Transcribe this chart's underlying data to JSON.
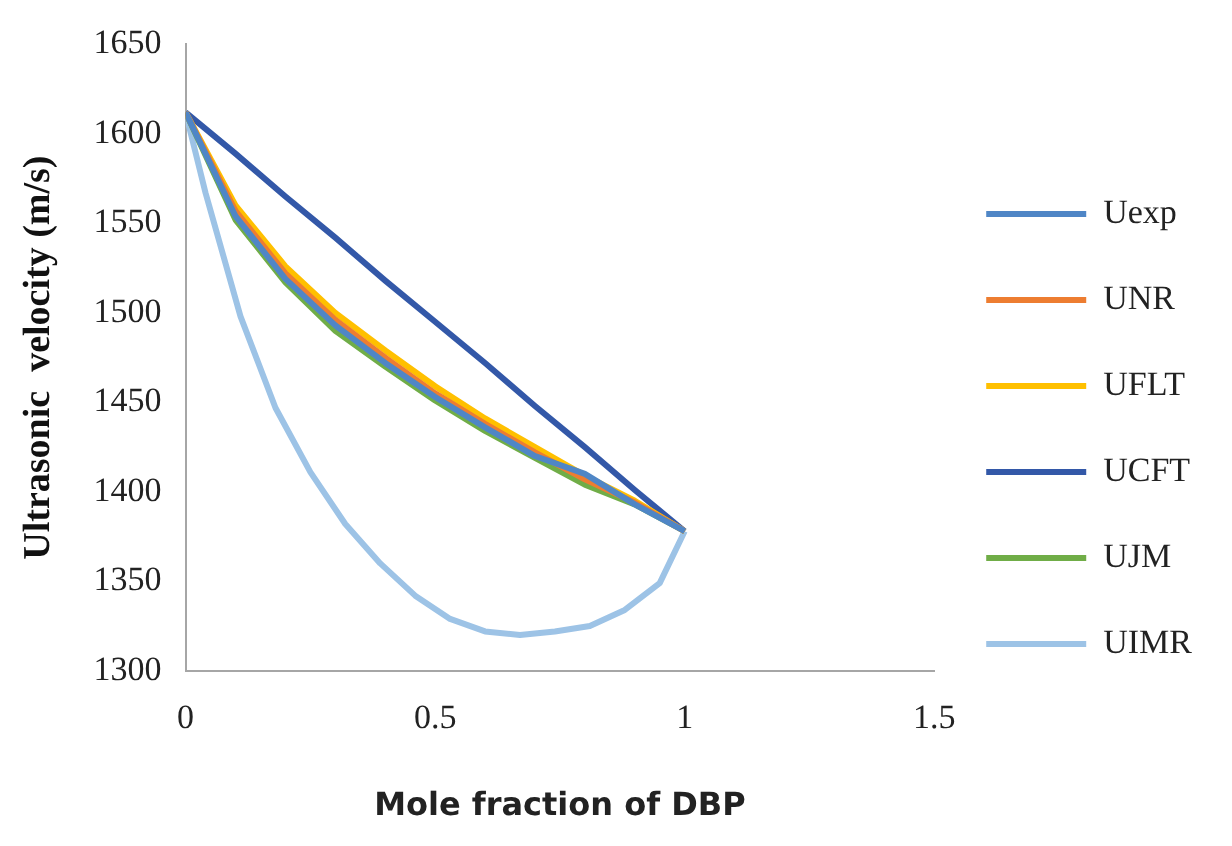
{
  "chart_data": {
    "type": "line",
    "xlabel": "Mole fraction of DBP",
    "ylabel": "Ultrasonic  velocity (m/s)",
    "xlim": [
      0,
      1.5
    ],
    "xticks": [
      0,
      0.5,
      1,
      1.5
    ],
    "ylim": [
      1300,
      1650
    ],
    "yticks": [
      1300,
      1350,
      1400,
      1450,
      1500,
      1550,
      1600,
      1650
    ],
    "grid": false,
    "legend": "right",
    "marker": "none",
    "line_style": "solid",
    "x": [
      0,
      0.1,
      0.2,
      0.3,
      0.4,
      0.5,
      0.6,
      0.7,
      0.8,
      0.9,
      1
    ],
    "series": [
      {
        "name": "Uexp",
        "color": "#4f86c6",
        "values": [
          1612,
          1554,
          1519,
          1493,
          1472,
          1453,
          1436,
          1420,
          1410,
          1393,
          1378
        ]
      },
      {
        "name": "UNR",
        "color": "#ed7d31",
        "values": [
          1612,
          1557,
          1522,
          1496,
          1475,
          1455,
          1438,
          1422,
          1407,
          1394,
          1378
        ]
      },
      {
        "name": "UFLT",
        "color": "#ffc000",
        "values": [
          1612,
          1560,
          1526,
          1500,
          1479,
          1459,
          1441,
          1425,
          1409,
          1395,
          1378
        ]
      },
      {
        "name": "UCFT",
        "color": "#3358a8",
        "values": [
          1612,
          1589,
          1565,
          1542,
          1518,
          1495,
          1472,
          1448,
          1425,
          1401,
          1378
        ]
      },
      {
        "name": "UJM",
        "color": "#70ad47",
        "values": [
          1612,
          1552,
          1517,
          1490,
          1470,
          1451,
          1434,
          1419,
          1404,
          1393,
          1378
        ]
      },
      {
        "name": "UIMR",
        "color": "#9dc3e6",
        "x": [
          0,
          0.04,
          0.11,
          0.18,
          0.25,
          0.32,
          0.39,
          0.46,
          0.53,
          0.6,
          0.67,
          0.74,
          0.81,
          0.88,
          0.95,
          1
        ],
        "values": [
          1612,
          1567,
          1498,
          1447,
          1411,
          1382,
          1360,
          1342,
          1329,
          1322,
          1320,
          1322,
          1325,
          1334,
          1349,
          1378
        ]
      }
    ]
  }
}
